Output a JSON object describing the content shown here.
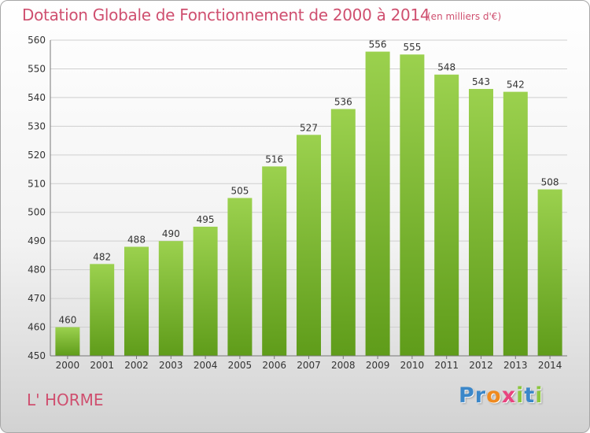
{
  "header": {
    "title": "Dotation Globale de Fonctionnement de 2000 à 2014",
    "subtitle": "(en milliers d'€)"
  },
  "footer": {
    "commune": "L' HORME",
    "logo_letters": [
      {
        "char": "P",
        "color": "#3b87c9"
      },
      {
        "char": "r",
        "color": "#3b87c9"
      },
      {
        "char": "o",
        "color": "#ef8a1f"
      },
      {
        "char": "x",
        "color": "#e8437f"
      },
      {
        "char": "i",
        "color": "#8cc63f"
      },
      {
        "char": "t",
        "color": "#3b87c9"
      },
      {
        "char": "i",
        "color": "#8cc63f"
      }
    ]
  },
  "chart_data": {
    "type": "bar",
    "title": "Dotation Globale de Fonctionnement de 2000 à 2014",
    "subtitle": "(en milliers d'€)",
    "categories": [
      "2000",
      "2001",
      "2002",
      "2003",
      "2004",
      "2005",
      "2006",
      "2007",
      "2008",
      "2009",
      "2010",
      "2011",
      "2012",
      "2013",
      "2014"
    ],
    "values": [
      460,
      482,
      488,
      490,
      495,
      505,
      516,
      527,
      536,
      556,
      555,
      548,
      543,
      542,
      508
    ],
    "ylim": [
      450,
      560
    ],
    "yticks": [
      450,
      460,
      470,
      480,
      490,
      500,
      510,
      520,
      530,
      540,
      550,
      560
    ],
    "grid": true,
    "bar_color_top": "#9bd14e",
    "bar_color_bottom": "#5f9c1a",
    "label_color": "#333333",
    "grid_color": "#cfcfcf"
  }
}
